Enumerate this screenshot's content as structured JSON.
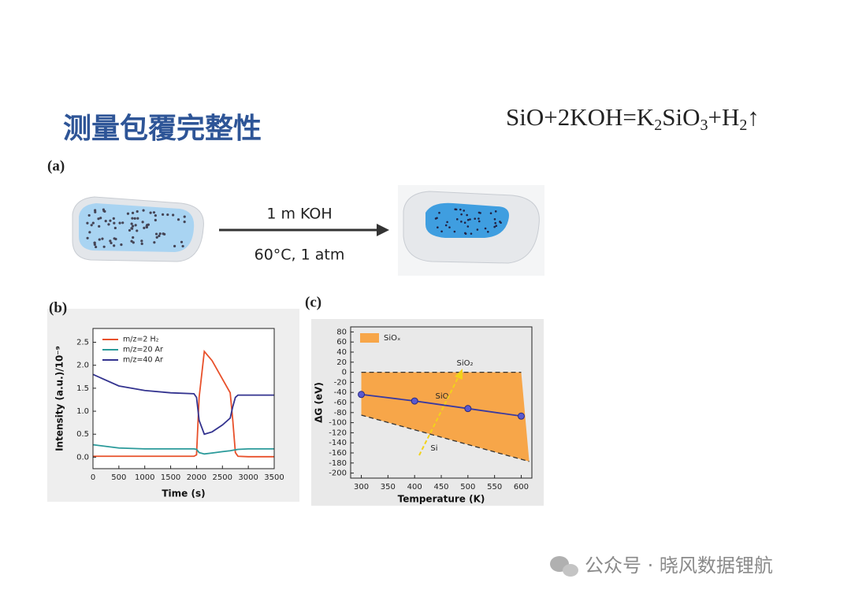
{
  "header": {
    "title": "测量包覆完整性"
  },
  "equation": [
    {
      "text": "SiO+2KOH=K"
    },
    {
      "text": "2",
      "sub": true
    },
    {
      "text": "SiO"
    },
    {
      "text": "3",
      "sub": true
    },
    {
      "text": "+H"
    },
    {
      "text": "2",
      "sub": true
    },
    {
      "text": "↑"
    }
  ],
  "panel_a": {
    "label": "(a)",
    "reagent": "1 m KOH",
    "conditions": "60°C, 1 atm"
  },
  "watermark": "公众号 · 晓风数据锂航",
  "chart_data": [
    {
      "type": "line",
      "panel": "(b)",
      "x_label": "Time (s)",
      "y_label": "Intensity (a.u.)/10⁻⁹",
      "legend": "upper left",
      "x": [
        0,
        500,
        1000,
        1500,
        1950,
        2000,
        2050,
        2150,
        2300,
        2500,
        2650,
        2700,
        2750,
        2800,
        3000,
        3500
      ],
      "series": [
        {
          "name": "m/z=2 H₂",
          "color": "#e8502a",
          "values": [
            0.02,
            0.02,
            0.02,
            0.02,
            0.02,
            0.05,
            1.3,
            2.3,
            2.1,
            1.7,
            1.4,
            0.8,
            0.1,
            0.02,
            0.01,
            0.01
          ]
        },
        {
          "name": "m/z=20 Ar",
          "color": "#2a9a9a",
          "values": [
            0.27,
            0.2,
            0.18,
            0.18,
            0.18,
            0.17,
            0.1,
            0.07,
            0.09,
            0.12,
            0.14,
            0.15,
            0.16,
            0.17,
            0.18,
            0.18
          ]
        },
        {
          "name": "m/z=40 Ar",
          "color": "#33338f",
          "values": [
            1.8,
            1.55,
            1.45,
            1.4,
            1.38,
            1.3,
            0.8,
            0.5,
            0.55,
            0.7,
            0.85,
            1.1,
            1.3,
            1.35,
            1.35,
            1.35
          ]
        }
      ],
      "xlim": [
        0,
        3500
      ],
      "xticks": [
        0,
        500,
        1000,
        1500,
        2000,
        2500,
        3000,
        3500
      ],
      "ylim": [
        -0.25,
        2.8
      ],
      "yticks": [
        {
          "value": 0,
          "label": "0.0"
        },
        0.5,
        {
          "value": 1,
          "label": "1.0"
        },
        1.5,
        {
          "value": 2,
          "label": "2.0"
        },
        2.5
      ]
    },
    {
      "type": "line",
      "panel": "(c)",
      "x_label": "Temperature (K)",
      "y_label": "ΔG (eV)",
      "legend": "upper left",
      "area": {
        "name": "SiOₓ",
        "color": "#f7a649",
        "between": [
          0,
          1
        ]
      },
      "series": [
        {
          "color": "#333333",
          "dash": true,
          "x": [
            300,
            600
          ],
          "values": [
            0,
            0
          ]
        },
        {
          "color": "#333333",
          "dash": true,
          "x": [
            300,
            615
          ],
          "values": [
            -85,
            -177
          ]
        },
        {
          "color": "#3a3aa0",
          "markers": true,
          "x": [
            300,
            400,
            500,
            600
          ],
          "values": [
            -44,
            -57,
            -72,
            -87
          ]
        }
      ],
      "annotations": [
        {
          "text": "SiO₂"
        },
        {
          "text": "SiO"
        },
        {
          "text": "Si"
        }
      ],
      "xlim": [
        280,
        620
      ],
      "xticks": [
        300,
        350,
        400,
        450,
        500,
        550,
        600
      ],
      "ylim": [
        -210,
        90
      ],
      "yticks": [
        -200,
        -180,
        -160,
        -140,
        -120,
        -100,
        -80,
        -60,
        -40,
        -20,
        0,
        20,
        40,
        60,
        80
      ]
    }
  ]
}
